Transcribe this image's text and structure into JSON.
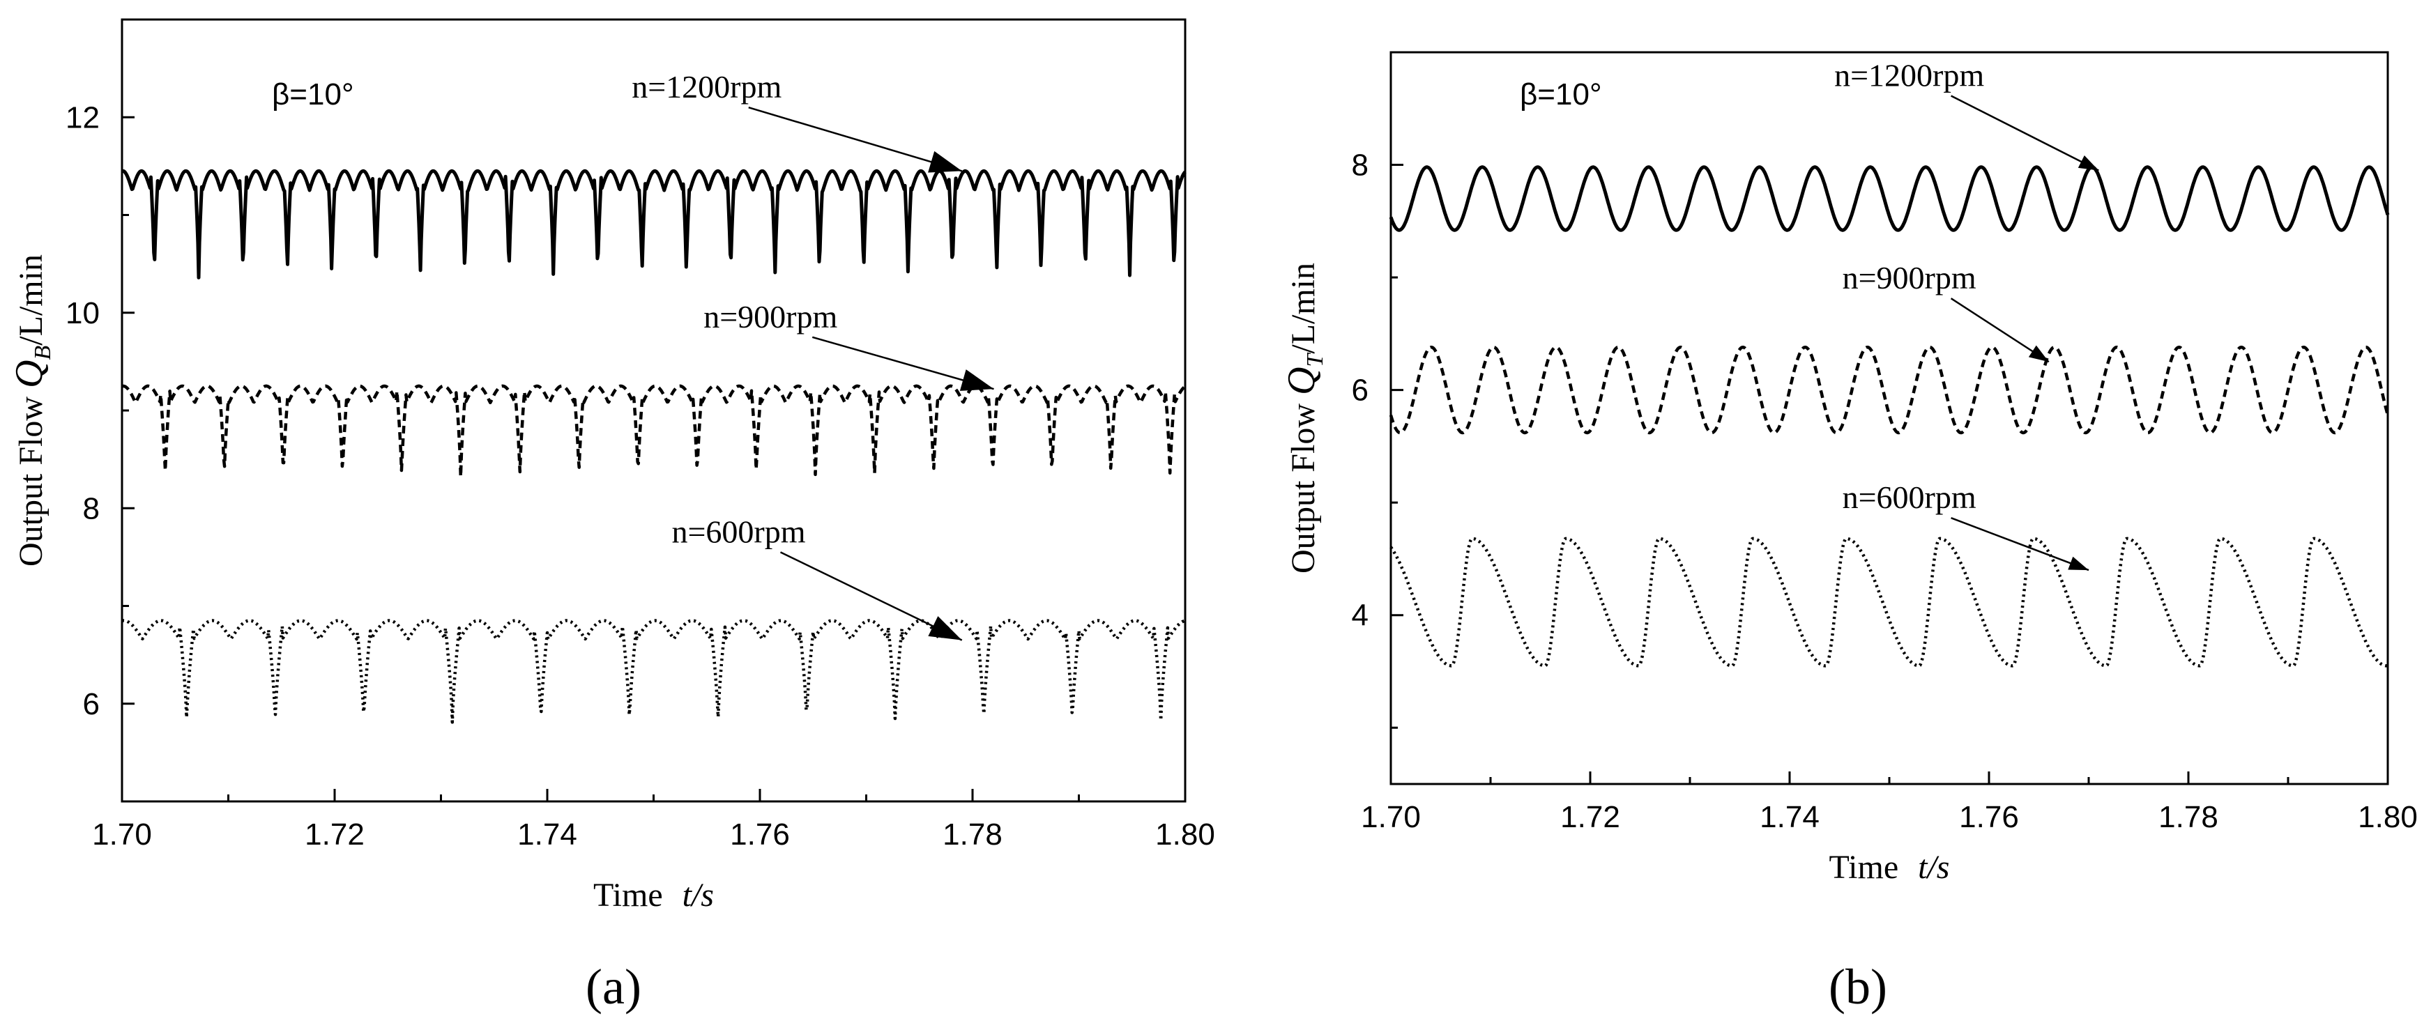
{
  "chart_data": [
    {
      "type": "line",
      "panel_label": "(a)",
      "annotation": "β=10°",
      "xlabel_main": "Time",
      "xlabel_var": "t/s",
      "ylabel_pre": "Output Flow ",
      "ylabel_var": "Q",
      "ylabel_sub": "B",
      "ylabel_unit": "/L/min",
      "xlim": [
        1.7,
        1.8
      ],
      "ylim": [
        5.0,
        13.0
      ],
      "xticks": [
        1.7,
        1.72,
        1.74,
        1.76,
        1.78,
        1.8
      ],
      "xtick_labels": [
        "1.70",
        "1.72",
        "1.74",
        "1.76",
        "1.78",
        "1.80"
      ],
      "yticks": [
        6,
        8,
        10,
        12
      ],
      "ytick_labels": [
        "6",
        "8",
        "10",
        "12"
      ],
      "series": [
        {
          "name": "n=1200rpm",
          "style": "solid",
          "mean_level": 11.0,
          "min": 10.35,
          "max": 11.45,
          "period_s": 0.00417,
          "shape": "double_peak_sharp_dip",
          "label_at": [
            1.755,
            12.2
          ],
          "arrow_to": [
            1.779,
            11.45
          ]
        },
        {
          "name": "n=900rpm",
          "style": "dashed",
          "mean_level": 8.9,
          "min": 8.3,
          "max": 9.25,
          "period_s": 0.00556,
          "shape": "double_peak_sharp_dip",
          "label_at": [
            1.761,
            9.85
          ],
          "arrow_to": [
            1.782,
            9.22
          ]
        },
        {
          "name": "n=600rpm",
          "style": "dotted",
          "mean_level": 6.4,
          "min": 5.8,
          "max": 6.85,
          "period_s": 0.00833,
          "shape": "double_peak_sharp_dip",
          "label_at": [
            1.758,
            7.65
          ],
          "arrow_to": [
            1.779,
            6.65
          ]
        }
      ]
    },
    {
      "type": "line",
      "panel_label": "(b)",
      "annotation": "β=10°",
      "xlabel_main": "Time",
      "xlabel_var": "t/s",
      "ylabel_pre": "Output Flow ",
      "ylabel_var": "Q",
      "ylabel_sub": "T",
      "ylabel_unit": "/L/min",
      "xlim": [
        1.7,
        1.8
      ],
      "ylim": [
        2.5,
        9.0
      ],
      "xticks": [
        1.7,
        1.72,
        1.74,
        1.76,
        1.78,
        1.8
      ],
      "xtick_labels": [
        "1.70",
        "1.72",
        "1.74",
        "1.76",
        "1.78",
        "1.80"
      ],
      "yticks": [
        4,
        6,
        8
      ],
      "ytick_labels": [
        "4",
        "6",
        "8"
      ],
      "series": [
        {
          "name": "n=1200rpm",
          "style": "solid",
          "mean_level": 7.7,
          "min": 7.42,
          "max": 7.98,
          "period_s": 0.00556,
          "shape": "smooth_sine",
          "label_at": [
            1.752,
            8.7
          ],
          "arrow_to": [
            1.771,
            7.95
          ]
        },
        {
          "name": "n=900rpm",
          "style": "dashed",
          "mean_level": 6.0,
          "min": 5.62,
          "max": 6.38,
          "period_s": 0.00625,
          "shape": "smooth_sine",
          "label_at": [
            1.752,
            6.9
          ],
          "arrow_to": [
            1.766,
            6.25
          ]
        },
        {
          "name": "n=600rpm",
          "style": "dotted",
          "mean_level": 4.1,
          "min": 3.55,
          "max": 4.68,
          "period_s": 0.00938,
          "shape": "sawtooth_smooth",
          "label_at": [
            1.752,
            4.95
          ],
          "arrow_to": [
            1.77,
            4.4
          ]
        }
      ]
    }
  ]
}
